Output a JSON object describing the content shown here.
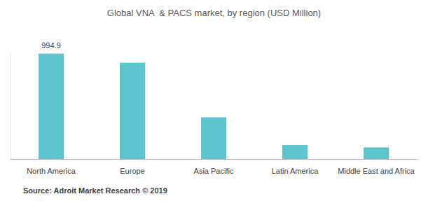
{
  "chart_data": {
    "type": "bar",
    "title": "Global VNA  & PACS market, by region (USD Million)",
    "source": "Source: Adroit Market Research © 2019",
    "categories": [
      "North America",
      "Europe",
      "Asia Pacific",
      "Latin America",
      "Middle East and Africa"
    ],
    "values": [
      994.9,
      910,
      393,
      131,
      111
    ],
    "value_labels": [
      "994.9",
      null,
      null,
      null,
      null
    ],
    "data_labels": true,
    "color": "#5ec4cd",
    "ylim": [
      0,
      1000
    ],
    "tick_labels": "x",
    "grid": false
  }
}
